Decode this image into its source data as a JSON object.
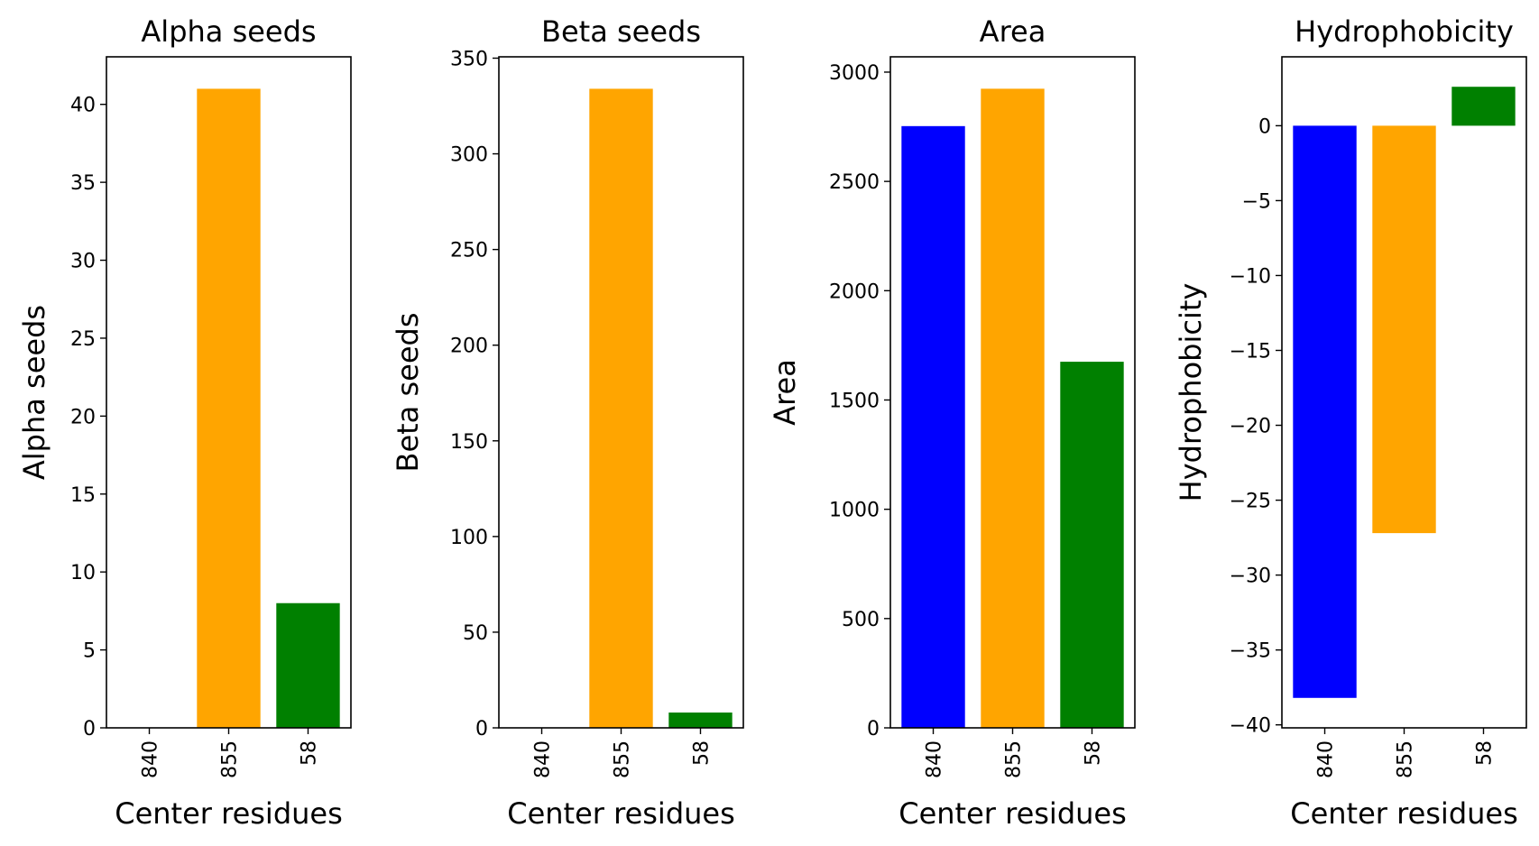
{
  "chart_data": [
    {
      "type": "bar",
      "title": "Alpha seeds",
      "xlabel": "Center residues",
      "ylabel": "Alpha seeds",
      "categories": [
        "840",
        "855",
        "58"
      ],
      "values": [
        0,
        41,
        8
      ],
      "colors": [
        "#0000ff",
        "#ffa500",
        "#008000"
      ],
      "ylim": [
        0,
        43.05
      ],
      "yticks": [
        0,
        5,
        10,
        15,
        20,
        25,
        30,
        35,
        40
      ],
      "ytick_labels": [
        "0",
        "5",
        "10",
        "15",
        "20",
        "25",
        "30",
        "35",
        "40"
      ],
      "grid": false,
      "legend": "none"
    },
    {
      "type": "bar",
      "title": "Beta seeds",
      "xlabel": "Center residues",
      "ylabel": "Beta seeds",
      "categories": [
        "840",
        "855",
        "58"
      ],
      "values": [
        0,
        334,
        8
      ],
      "colors": [
        "#0000ff",
        "#ffa500",
        "#008000"
      ],
      "ylim": [
        0,
        350.7
      ],
      "yticks": [
        0,
        50,
        100,
        150,
        200,
        250,
        300,
        350
      ],
      "ytick_labels": [
        "0",
        "50",
        "100",
        "150",
        "200",
        "250",
        "300",
        "350"
      ],
      "grid": false,
      "legend": "none"
    },
    {
      "type": "bar",
      "title": "Area",
      "xlabel": "Center residues",
      "ylabel": "Area",
      "categories": [
        "840",
        "855",
        "58"
      ],
      "values": [
        2753,
        2924,
        1675
      ],
      "colors": [
        "#0000ff",
        "#ffa500",
        "#008000"
      ],
      "ylim": [
        0,
        3070
      ],
      "yticks": [
        0,
        500,
        1000,
        1500,
        2000,
        2500,
        3000
      ],
      "ytick_labels": [
        "0",
        "500",
        "1000",
        "1500",
        "2000",
        "2500",
        "3000"
      ],
      "grid": false,
      "legend": "none"
    },
    {
      "type": "bar",
      "title": "Hydrophobicity",
      "xlabel": "Center residues",
      "ylabel": "Hydrophobicity",
      "categories": [
        "840",
        "855",
        "58"
      ],
      "values": [
        -38.2,
        -27.2,
        2.6
      ],
      "colors": [
        "#0000ff",
        "#ffa500",
        "#008000"
      ],
      "ylim": [
        -40.2,
        4.6
      ],
      "yticks": [
        0,
        -5,
        -10,
        -15,
        -20,
        -25,
        -30,
        -35,
        -40
      ],
      "ytick_labels": [
        "0",
        "−5",
        "−10",
        "−15",
        "−20",
        "−25",
        "−30",
        "−35",
        "−40"
      ],
      "grid": false,
      "legend": "none"
    }
  ]
}
